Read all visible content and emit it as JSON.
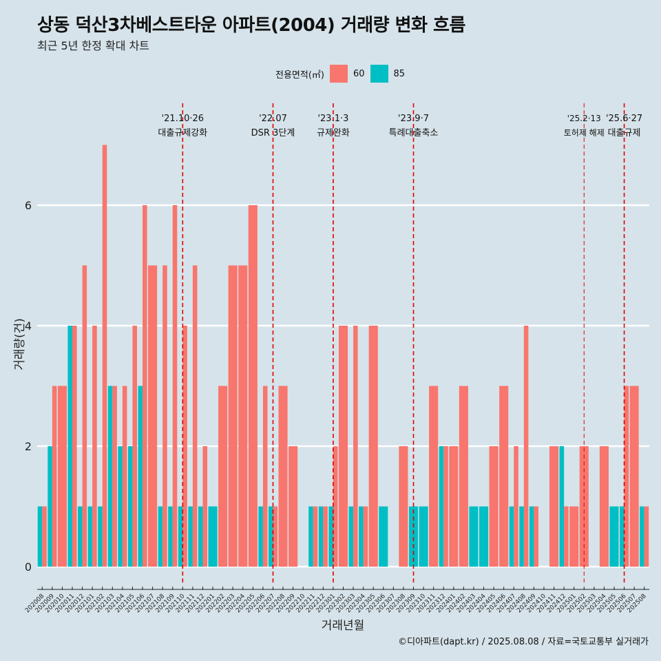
{
  "title": "상동 덕산3차베스트타운 아파트(2004) 거래량 변화 흐름",
  "subtitle": "최근 5년 한정 확대 차트",
  "caption": "©디아파트(dapt.kr) / 2025.08.08 / 자료=국토교통부 실거래가",
  "legend": {
    "title": "전용면적(㎡)",
    "items": [
      {
        "label": "60",
        "color": "#F8766D"
      },
      {
        "label": "85",
        "color": "#00BFC4"
      }
    ]
  },
  "chart_data": {
    "type": "bar",
    "xlabel": "거래년월",
    "ylabel": "거래량(건)",
    "ylim": [
      -0.3,
      7.8
    ],
    "yticks": [
      0,
      2,
      4,
      6
    ],
    "grid": "horizontal-major",
    "legend_position": "top",
    "categories": [
      "202008",
      "202009",
      "202010",
      "202011",
      "202012",
      "202101",
      "202102",
      "202103",
      "202104",
      "202105",
      "202106",
      "202107",
      "202108",
      "202109",
      "202110",
      "202111",
      "202112",
      "202201",
      "202202",
      "202203",
      "202204",
      "202205",
      "202206",
      "202207",
      "202208",
      "202209",
      "202210",
      "202211",
      "202212",
      "202301",
      "202302",
      "202303",
      "202304",
      "202305",
      "202306",
      "202307",
      "202308",
      "202309",
      "202310",
      "202311",
      "202312",
      "202401",
      "202402",
      "202403",
      "202404",
      "202405",
      "202406",
      "202407",
      "202408",
      "202409",
      "202410",
      "202411",
      "202412",
      "202501",
      "202502",
      "202503",
      "202504",
      "202505",
      "202506",
      "202507",
      "202508"
    ],
    "series": [
      {
        "name": "60",
        "color": "#F8766D",
        "values": [
          1,
          3,
          3,
          4,
          5,
          4,
          7,
          3,
          3,
          4,
          6,
          5,
          5,
          6,
          4,
          5,
          2,
          0,
          3,
          5,
          5,
          6,
          3,
          1,
          3,
          2,
          0,
          1,
          1,
          2,
          4,
          4,
          1,
          4,
          0,
          0,
          2,
          0,
          0,
          3,
          2,
          2,
          3,
          0,
          0,
          2,
          3,
          2,
          4,
          1,
          0,
          2,
          1,
          1,
          2,
          0,
          2,
          0,
          3,
          3,
          1
        ]
      },
      {
        "name": "85",
        "color": "#00BFC4",
        "values": [
          1,
          2,
          0,
          4,
          1,
          1,
          1,
          3,
          2,
          2,
          3,
          0,
          1,
          1,
          1,
          1,
          1,
          1,
          0,
          0,
          0,
          0,
          1,
          1,
          0,
          0,
          0,
          1,
          1,
          1,
          0,
          1,
          1,
          0,
          1,
          0,
          0,
          1,
          1,
          0,
          2,
          0,
          0,
          1,
          1,
          0,
          0,
          1,
          1,
          1,
          0,
          0,
          2,
          0,
          0,
          0,
          0,
          1,
          1,
          0,
          1
        ]
      }
    ],
    "annotations": [
      {
        "x": "202110",
        "date": "'21.10·26",
        "label": "대출규제강화"
      },
      {
        "x": "202207",
        "date": "'22.07",
        "label": "DSR 3단계"
      },
      {
        "x": "202301",
        "date": "'23.1·3",
        "label": "규제완화"
      },
      {
        "x": "202309",
        "date": "'23.9·7",
        "label": "특례대출축소"
      },
      {
        "x": "202502",
        "date": "'25.2·13",
        "label": "토허제 해제"
      },
      {
        "x": "202506",
        "date": "'25.6·27",
        "label": "대출규제"
      }
    ]
  }
}
